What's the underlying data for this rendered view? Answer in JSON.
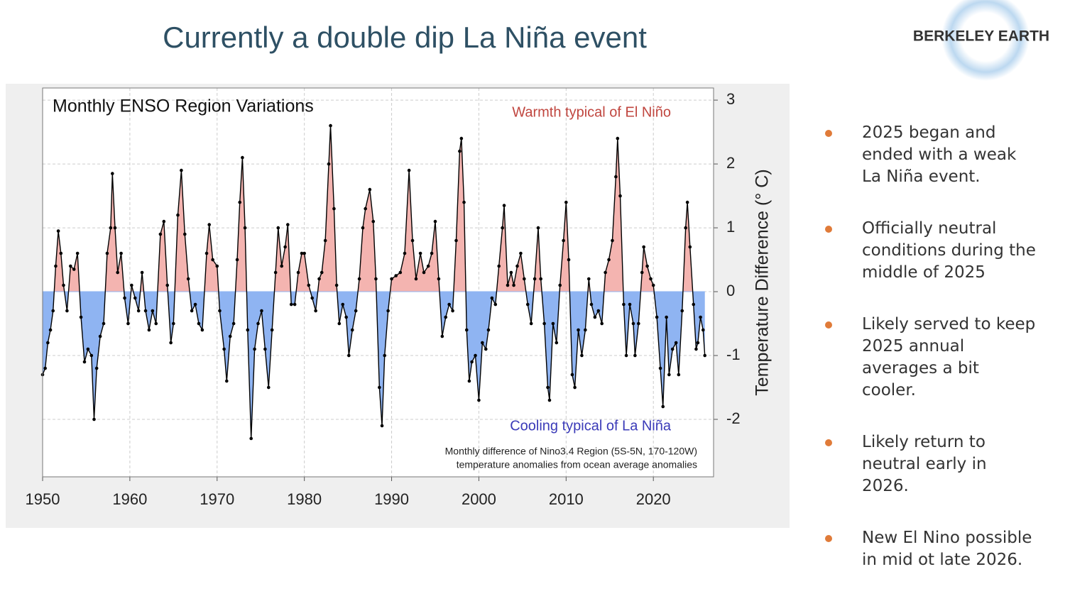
{
  "header": {
    "title": "Currently a double dip La Niña event",
    "logo": "BERKELEY EARTH"
  },
  "chart_data": {
    "type": "area-line",
    "title": "Monthly ENSO Region Variations",
    "ylabel": "Temperature  Difference  (° C)",
    "annotations": [
      "Warmth typical of El Niño",
      "Cooling typical of La Niña"
    ],
    "note": [
      "Monthly difference of Nino3.4 Region (5S-5N, 170-120W)",
      "temperature anomalies from ocean average anomalies"
    ],
    "color": "#000000",
    "positive_color": "#f4b4b0",
    "negative_color": "#8fb4f2",
    "grid": true,
    "xlim": [
      1950,
      2026.9
    ],
    "ylim": [
      -2.9,
      3.19
    ],
    "xticks": [
      1950,
      1960,
      1970,
      1980,
      1990,
      2000,
      2010,
      2020
    ],
    "yticks": [
      -2,
      -1,
      0,
      1,
      2,
      3
    ],
    "x": [
      1950.0,
      1950.3,
      1950.6,
      1950.9,
      1951.2,
      1951.5,
      1951.8,
      1952.1,
      1952.4,
      1952.8,
      1953.2,
      1953.6,
      1954.0,
      1954.4,
      1954.8,
      1955.2,
      1955.6,
      1955.9,
      1956.2,
      1956.6,
      1957.0,
      1957.4,
      1957.8,
      1958.0,
      1958.3,
      1958.6,
      1959.0,
      1959.4,
      1959.8,
      1960.2,
      1960.6,
      1961.0,
      1961.4,
      1961.8,
      1962.2,
      1962.6,
      1963.0,
      1963.5,
      1963.9,
      1964.3,
      1964.7,
      1965.0,
      1965.5,
      1965.9,
      1966.3,
      1966.7,
      1967.1,
      1967.5,
      1967.9,
      1968.3,
      1968.8,
      1969.1,
      1969.5,
      1970.0,
      1970.3,
      1970.8,
      1971.1,
      1971.5,
      1971.9,
      1972.3,
      1972.6,
      1972.9,
      1973.2,
      1973.5,
      1973.9,
      1974.3,
      1974.7,
      1975.1,
      1975.5,
      1975.9,
      1976.3,
      1976.7,
      1977.0,
      1977.4,
      1977.8,
      1978.1,
      1978.5,
      1978.9,
      1979.3,
      1979.7,
      1980.0,
      1980.5,
      1980.9,
      1981.3,
      1981.7,
      1982.0,
      1982.4,
      1982.8,
      1983.0,
      1983.4,
      1983.7,
      1984.0,
      1984.4,
      1984.8,
      1985.1,
      1985.5,
      1985.9,
      1986.3,
      1986.7,
      1987.0,
      1987.5,
      1987.9,
      1988.2,
      1988.6,
      1988.9,
      1989.2,
      1989.6,
      1990.0,
      1990.5,
      1991.0,
      1991.5,
      1992.0,
      1992.4,
      1992.8,
      1993.3,
      1993.7,
      1994.2,
      1994.6,
      1995.0,
      1995.4,
      1995.8,
      1996.2,
      1996.6,
      1997.0,
      1997.4,
      1997.8,
      1998.0,
      1998.3,
      1998.6,
      1998.9,
      1999.2,
      1999.6,
      2000.0,
      2000.4,
      2000.8,
      2001.1,
      2001.5,
      2001.9,
      2002.3,
      2002.7,
      2002.9,
      2003.3,
      2003.7,
      2004.0,
      2004.4,
      2004.8,
      2005.2,
      2005.6,
      2006.0,
      2006.4,
      2006.8,
      2007.1,
      2007.5,
      2007.9,
      2008.1,
      2008.5,
      2008.9,
      2009.3,
      2009.7,
      2010.0,
      2010.3,
      2010.7,
      2011.0,
      2011.4,
      2011.8,
      2012.2,
      2012.6,
      2012.9,
      2013.3,
      2013.7,
      2014.1,
      2014.5,
      2014.9,
      2015.3,
      2015.7,
      2015.9,
      2016.2,
      2016.6,
      2016.9,
      2017.3,
      2017.7,
      2017.9,
      2018.3,
      2018.7,
      2018.9,
      2019.3,
      2019.7,
      2020.0,
      2020.4,
      2020.8,
      2021.1,
      2021.5,
      2021.8,
      2022.2,
      2022.6,
      2022.9,
      2023.3,
      2023.7,
      2023.9,
      2024.2,
      2024.6,
      2024.9,
      2025.1,
      2025.4,
      2025.7,
      2025.9
    ],
    "values": [
      -1.3,
      -1.2,
      -0.8,
      -0.6,
      -0.3,
      0.4,
      0.95,
      0.6,
      0.1,
      -0.3,
      0.4,
      0.35,
      0.6,
      -0.4,
      -1.1,
      -0.9,
      -1.0,
      -2.0,
      -1.2,
      -0.7,
      -0.5,
      0.6,
      1.0,
      1.85,
      1.0,
      0.3,
      0.6,
      -0.1,
      -0.5,
      0.1,
      -0.1,
      -0.3,
      0.3,
      -0.3,
      -0.6,
      -0.3,
      -0.5,
      0.9,
      1.1,
      0.1,
      -0.8,
      -0.5,
      1.2,
      1.9,
      0.9,
      0.2,
      -0.3,
      -0.2,
      -0.5,
      -0.6,
      0.6,
      1.05,
      0.5,
      0.4,
      -0.3,
      -0.9,
      -1.4,
      -0.7,
      -0.5,
      0.5,
      1.4,
      2.1,
      1.0,
      -0.6,
      -2.3,
      -0.9,
      -0.5,
      -0.3,
      -0.9,
      -1.5,
      -0.6,
      0.3,
      1.0,
      0.4,
      0.7,
      1.05,
      -0.2,
      -0.2,
      0.3,
      0.6,
      0.6,
      0.1,
      -0.1,
      -0.3,
      0.2,
      0.3,
      0.8,
      2.0,
      2.6,
      1.3,
      0.1,
      -0.5,
      -0.2,
      -0.4,
      -1.0,
      -0.6,
      -0.3,
      0.2,
      1.0,
      1.3,
      1.6,
      1.1,
      0.2,
      -1.5,
      -2.1,
      -1.0,
      -0.3,
      0.2,
      0.25,
      0.3,
      0.6,
      1.9,
      0.8,
      0.2,
      0.6,
      0.3,
      0.4,
      0.6,
      1.1,
      0.2,
      -0.7,
      -0.4,
      -0.2,
      -0.3,
      0.8,
      2.2,
      2.4,
      1.4,
      -0.6,
      -1.4,
      -1.1,
      -1.0,
      -1.7,
      -0.8,
      -0.9,
      -0.6,
      -0.1,
      -0.2,
      0.4,
      1.0,
      1.35,
      0.1,
      0.3,
      0.1,
      0.4,
      0.6,
      0.2,
      -0.2,
      -0.5,
      0.2,
      1.0,
      0.2,
      -0.5,
      -1.5,
      -1.7,
      -0.5,
      -0.8,
      0.1,
      0.8,
      1.4,
      0.5,
      -1.3,
      -1.5,
      -0.6,
      -1.0,
      -0.6,
      0.2,
      -0.2,
      -0.4,
      -0.3,
      -0.5,
      0.3,
      0.5,
      0.8,
      1.8,
      2.4,
      1.5,
      -0.2,
      -1.0,
      -0.2,
      -0.5,
      -1.0,
      -0.5,
      0.3,
      0.7,
      0.4,
      0.2,
      0.1,
      -0.4,
      -1.2,
      -1.8,
      -0.4,
      -1.3,
      -0.9,
      -0.8,
      -1.3,
      -0.3,
      1.0,
      1.4,
      0.7,
      -0.2,
      -0.9,
      -0.8,
      -0.4,
      -0.6,
      -1.0
    ]
  },
  "bullets": [
    "2025 began and ended with a weak La Niña event.",
    "Officially neutral conditions during the middle of 2025",
    "Likely served to keep 2025 annual averages a bit cooler.",
    "Likely return to neutral early in 2026.",
    "New El Nino possible in mid ot late 2026."
  ]
}
